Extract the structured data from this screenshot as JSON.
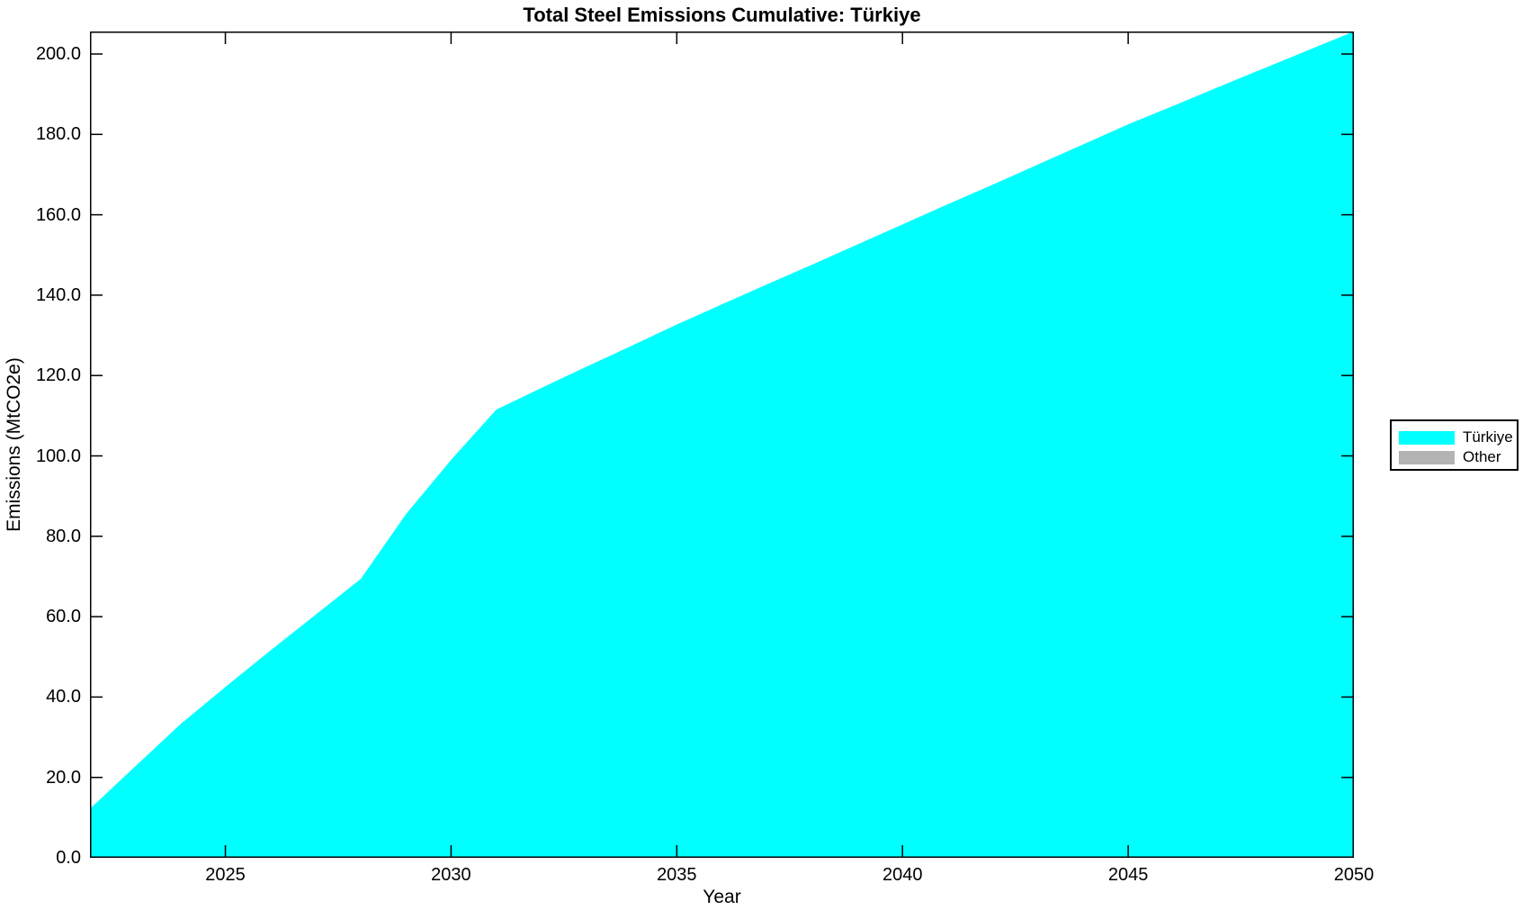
{
  "figure": {
    "background": "#ffffff",
    "axis_color": "#000000"
  },
  "chart_data": {
    "type": "area",
    "title": "Total Steel Emissions Cumulative: Türkiye",
    "xlabel": "Year",
    "ylabel": "Emissions (MtCO2e)",
    "stacked": true,
    "grid": false,
    "xlim": [
      2022,
      2050
    ],
    "ylim": [
      0,
      205.6
    ],
    "x": [
      2022,
      2023,
      2024,
      2025,
      2026,
      2027,
      2028,
      2029,
      2030,
      2031,
      2032,
      2033,
      2034,
      2035,
      2036,
      2037,
      2038,
      2039,
      2040,
      2041,
      2042,
      2043,
      2044,
      2045,
      2046,
      2047,
      2048,
      2049,
      2050
    ],
    "series": [
      {
        "name": "Türkiye",
        "color": "#00ffff",
        "values": [
          12.2,
          22.7,
          33.2,
          42.5,
          51.6,
          60.5,
          69.4,
          85.5,
          99.0,
          111.5,
          116.9,
          122.2,
          127.4,
          132.7,
          137.7,
          142.7,
          147.6,
          152.6,
          157.6,
          162.6,
          167.5,
          172.5,
          177.5,
          182.5,
          187.1,
          191.8,
          196.4,
          201.0,
          205.6
        ]
      },
      {
        "name": "Other",
        "color": "#b3b3b3",
        "values": [
          0,
          0,
          0,
          0,
          0,
          0,
          0,
          0,
          0,
          0,
          0,
          0,
          0,
          0,
          0,
          0,
          0,
          0,
          0,
          0,
          0,
          0,
          0,
          0,
          0,
          0,
          0,
          0,
          0
        ]
      }
    ],
    "x_ticks": [
      2025,
      2030,
      2035,
      2040,
      2045,
      2050
    ],
    "x_tick_labels": [
      "2025",
      "2030",
      "2035",
      "2040",
      "2045",
      "2050"
    ],
    "y_ticks": [
      0,
      20,
      40,
      60,
      80,
      100,
      120,
      140,
      160,
      180,
      200
    ],
    "y_tick_labels": [
      "0.0",
      "20.0",
      "40.0",
      "60.0",
      "80.0",
      "100.0",
      "120.0",
      "140.0",
      "160.0",
      "180.0",
      "200.0"
    ],
    "legend": {
      "position": "right-outside",
      "entries": [
        {
          "label": "Türkiye",
          "color": "#00ffff"
        },
        {
          "label": "Other",
          "color": "#b3b3b3"
        }
      ]
    }
  }
}
